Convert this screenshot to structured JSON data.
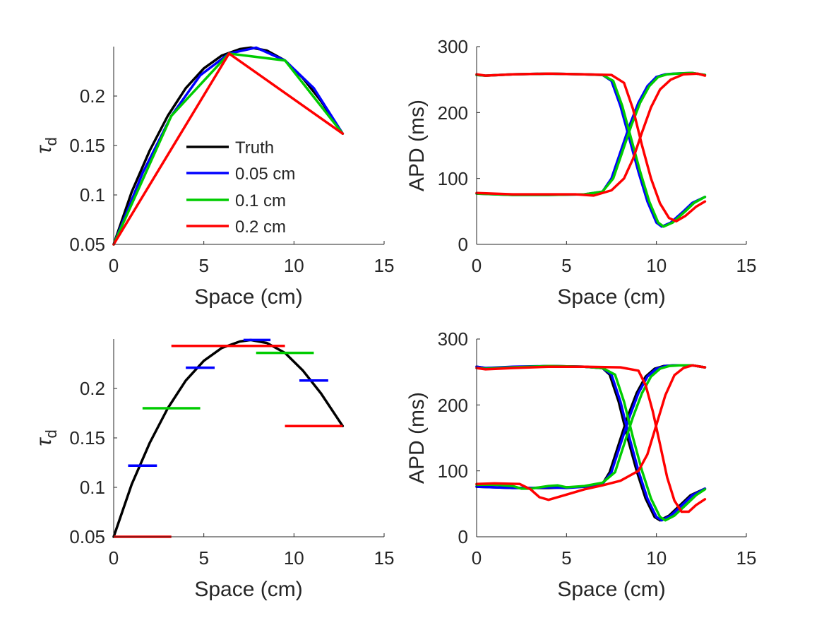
{
  "colors": {
    "truth": "#000000",
    "h005": "#0000ff",
    "h01": "#00cc00",
    "h02": "#ff0000",
    "axis": "#262626"
  },
  "legend": {
    "entries": [
      "Truth",
      "0.05 cm",
      "0.1 cm",
      "0.2 cm"
    ]
  },
  "chart_data": [
    {
      "id": "tau-linear",
      "type": "line",
      "xlabel": "Space (cm)",
      "ylabel_symbol": "τ",
      "ylabel_sub": "d",
      "xlim": [
        0,
        15
      ],
      "ylim": [
        0.05,
        0.25
      ],
      "xticks": [
        0,
        5,
        10,
        15
      ],
      "yticks": [
        0.05,
        0.1,
        0.15,
        0.2
      ],
      "ytick_labels": [
        "0.05",
        "0.1",
        "0.15",
        "0.2"
      ],
      "legend": "inside-lower-center",
      "series": [
        {
          "name": "Truth",
          "color": "truth",
          "x": [
            0,
            1,
            2,
            3,
            4,
            5,
            6,
            7,
            7.6,
            8.5,
            9.5,
            10.5,
            11.5,
            12.7
          ],
          "y": [
            0.05,
            0.103,
            0.145,
            0.18,
            0.208,
            0.228,
            0.241,
            0.2475,
            0.249,
            0.246,
            0.236,
            0.218,
            0.195,
            0.162
          ]
        },
        {
          "name": "0.05 cm",
          "color": "h005",
          "x": [
            0,
            1.6,
            3.2,
            4.8,
            6.4,
            7.9,
            9.5,
            11.1,
            12.7
          ],
          "y": [
            0.05,
            0.122,
            0.18,
            0.221,
            0.243,
            0.249,
            0.236,
            0.208,
            0.162
          ]
        },
        {
          "name": "0.1 cm",
          "color": "h01",
          "x": [
            0,
            3.2,
            6.4,
            9.5,
            12.7
          ],
          "y": [
            0.05,
            0.18,
            0.243,
            0.236,
            0.162
          ]
        },
        {
          "name": "0.2 cm",
          "color": "h02",
          "x": [
            0,
            6.4,
            12.7
          ],
          "y": [
            0.05,
            0.243,
            0.162
          ]
        }
      ]
    },
    {
      "id": "apd-linear",
      "type": "line",
      "xlabel": "Space (cm)",
      "ylabel": "APD (ms)",
      "xlim": [
        0,
        15
      ],
      "ylim": [
        0,
        300
      ],
      "xticks": [
        0,
        5,
        10,
        15
      ],
      "yticks": [
        0,
        100,
        200,
        300
      ],
      "ytick_labels": [
        "0",
        "100",
        "200",
        "300"
      ],
      "series": [
        {
          "name": "0.05 cm upper",
          "color": "h005",
          "x": [
            0,
            0.5,
            2,
            4,
            6,
            7,
            7.5,
            8,
            8.5,
            9,
            9.5,
            10,
            10.3,
            10.8,
            11.5,
            12,
            12.7
          ],
          "y": [
            257,
            256,
            258,
            259,
            258,
            257,
            248,
            210,
            160,
            110,
            65,
            33,
            27,
            33,
            50,
            63,
            72
          ]
        },
        {
          "name": "0.05 cm lower",
          "color": "h005",
          "x": [
            0,
            2,
            4,
            6,
            7,
            7.5,
            8,
            8.5,
            9,
            9.5,
            10,
            10.5,
            11,
            12,
            12.7
          ],
          "y": [
            77,
            75,
            75,
            76,
            80,
            100,
            140,
            180,
            215,
            240,
            254,
            258,
            259,
            260,
            257
          ]
        },
        {
          "name": "0.1 cm upper",
          "color": "h01",
          "x": [
            0,
            0.5,
            2,
            4,
            6,
            7,
            7.6,
            8.1,
            8.6,
            9.1,
            9.6,
            10.1,
            10.4,
            10.9,
            11.6,
            12.1,
            12.7
          ],
          "y": [
            257,
            256,
            258,
            259,
            258,
            257,
            248,
            210,
            160,
            110,
            65,
            33,
            27,
            33,
            50,
            63,
            72
          ]
        },
        {
          "name": "0.1 cm lower",
          "color": "h01",
          "x": [
            0,
            2,
            4,
            6,
            7,
            7.6,
            8.1,
            8.6,
            9.1,
            9.6,
            10.1,
            10.6,
            11.1,
            12,
            12.7
          ],
          "y": [
            77,
            75,
            75,
            76,
            80,
            100,
            140,
            180,
            215,
            240,
            254,
            258,
            259,
            260,
            257
          ]
        },
        {
          "name": "0.2 cm upper",
          "color": "h02",
          "x": [
            0,
            0.5,
            2,
            4,
            6,
            7.5,
            8.2,
            8.7,
            9.2,
            9.7,
            10.2,
            10.7,
            11.1,
            11.6,
            12.2,
            12.7
          ],
          "y": [
            258,
            256,
            258,
            259,
            258,
            257,
            245,
            205,
            150,
            100,
            62,
            40,
            35,
            43,
            57,
            65
          ]
        },
        {
          "name": "0.2 cm lower",
          "color": "h02",
          "x": [
            0,
            2,
            4,
            5.5,
            6.5,
            7.5,
            8.2,
            8.7,
            9.2,
            9.7,
            10.2,
            10.8,
            11.5,
            12.3,
            12.7
          ],
          "y": [
            78,
            76,
            76,
            76,
            74,
            82,
            100,
            130,
            170,
            208,
            235,
            250,
            258,
            259,
            256
          ]
        }
      ]
    },
    {
      "id": "tau-piecewise",
      "type": "line",
      "xlabel": "Space (cm)",
      "ylabel_symbol": "τ",
      "ylabel_sub": "d",
      "xlim": [
        0,
        15
      ],
      "ylim": [
        0.05,
        0.25
      ],
      "xticks": [
        0,
        5,
        10,
        15
      ],
      "yticks": [
        0.05,
        0.1,
        0.15,
        0.2
      ],
      "ytick_labels": [
        "0.05",
        "0.1",
        "0.15",
        "0.2"
      ],
      "series": [
        {
          "name": "Truth",
          "color": "truth",
          "x": [
            0,
            1,
            2,
            3,
            4,
            5,
            6,
            7,
            7.6,
            8.5,
            9.5,
            10.5,
            11.5,
            12.7
          ],
          "y": [
            0.05,
            0.103,
            0.145,
            0.18,
            0.208,
            0.228,
            0.241,
            0.2475,
            0.249,
            0.246,
            0.236,
            0.218,
            0.195,
            0.162
          ]
        }
      ],
      "segments": [
        {
          "color": "h005",
          "x0": 0.8,
          "x1": 2.4,
          "y": 0.122
        },
        {
          "color": "h005",
          "x0": 4.0,
          "x1": 5.6,
          "y": 0.221
        },
        {
          "color": "h005",
          "x0": 7.2,
          "x1": 8.7,
          "y": 0.249
        },
        {
          "color": "h005",
          "x0": 10.3,
          "x1": 11.9,
          "y": 0.208
        },
        {
          "color": "h01",
          "x0": 1.6,
          "x1": 4.8,
          "y": 0.18
        },
        {
          "color": "h01",
          "x0": 7.9,
          "x1": 11.1,
          "y": 0.236
        },
        {
          "color": "h02",
          "x0": 0,
          "x1": 3.2,
          "y": 0.05
        },
        {
          "color": "h02",
          "x0": 3.2,
          "x1": 9.5,
          "y": 0.243
        },
        {
          "color": "h02",
          "x0": 9.5,
          "x1": 12.7,
          "y": 0.162
        }
      ]
    },
    {
      "id": "apd-piecewise",
      "type": "line",
      "xlabel": "Space (cm)",
      "ylabel": "APD (ms)",
      "xlim": [
        0,
        15
      ],
      "ylim": [
        0,
        300
      ],
      "xticks": [
        0,
        5,
        10,
        15
      ],
      "yticks": [
        0,
        100,
        200,
        300
      ],
      "ytick_labels": [
        "0",
        "100",
        "200",
        "300"
      ],
      "series": [
        {
          "name": "Truth upper",
          "color": "truth",
          "x": [
            0,
            0.5,
            2,
            4,
            6,
            7,
            7.4,
            7.9,
            8.4,
            8.9,
            9.4,
            9.9,
            10.2,
            10.7,
            11.4,
            11.9,
            12.7
          ],
          "y": [
            258,
            256,
            257,
            259,
            258,
            256,
            246,
            205,
            150,
            100,
            58,
            30,
            25,
            32,
            50,
            63,
            73
          ]
        },
        {
          "name": "Truth lower",
          "color": "truth",
          "x": [
            0,
            2,
            4,
            6,
            7,
            7.4,
            7.9,
            8.4,
            8.9,
            9.4,
            9.9,
            10.4,
            11,
            12,
            12.7
          ],
          "y": [
            76,
            74,
            74,
            76,
            80,
            98,
            140,
            182,
            218,
            243,
            255,
            259,
            260,
            260,
            257
          ]
        },
        {
          "name": "0.05 cm upper",
          "color": "h005",
          "x": [
            0,
            0.5,
            2,
            4,
            6,
            7,
            7.5,
            8,
            8.5,
            9,
            9.5,
            10,
            10.3,
            10.8,
            11.5,
            12,
            12.7
          ],
          "y": [
            258,
            256,
            258,
            259,
            258,
            256,
            246,
            205,
            150,
            100,
            58,
            30,
            25,
            32,
            50,
            63,
            73
          ]
        },
        {
          "name": "0.05 cm lower",
          "color": "h005",
          "x": [
            0,
            1,
            2,
            3,
            4,
            5,
            6,
            7,
            7.5,
            8,
            8.5,
            9,
            9.5,
            10,
            10.5,
            11,
            12,
            12.7
          ],
          "y": [
            76,
            75,
            74,
            74,
            75,
            74,
            76,
            80,
            98,
            140,
            182,
            218,
            243,
            255,
            259,
            260,
            260,
            257
          ]
        },
        {
          "name": "0.1 cm upper",
          "color": "h01",
          "x": [
            0,
            0.5,
            2,
            4,
            6,
            7,
            7.7,
            8.2,
            8.7,
            9.2,
            9.7,
            10.2,
            10.5,
            11,
            11.7,
            12.2,
            12.7
          ],
          "y": [
            256,
            255,
            257,
            259,
            258,
            256,
            246,
            205,
            150,
            100,
            58,
            30,
            25,
            32,
            50,
            63,
            72
          ]
        },
        {
          "name": "0.1 cm lower",
          "color": "h01",
          "x": [
            0,
            1,
            2,
            2.5,
            3,
            3.5,
            4,
            4.5,
            5,
            6,
            7,
            7.7,
            8.2,
            8.7,
            9.2,
            9.7,
            10.2,
            10.7,
            11.3,
            12,
            12.7
          ],
          "y": [
            79,
            79,
            77,
            73,
            73,
            75,
            77,
            78,
            75,
            77,
            82,
            98,
            140,
            182,
            218,
            243,
            255,
            259,
            260,
            260,
            257
          ]
        },
        {
          "name": "0.2 cm upper",
          "color": "h02",
          "x": [
            0,
            0.5,
            2,
            4,
            6,
            8,
            9,
            9.4,
            9.8,
            10.2,
            10.6,
            11,
            11.4,
            11.8,
            12.2,
            12.7
          ],
          "y": [
            256,
            254,
            256,
            258,
            258,
            257,
            252,
            230,
            190,
            140,
            90,
            55,
            38,
            38,
            48,
            57
          ]
        },
        {
          "name": "0.2 cm lower",
          "color": "h02",
          "x": [
            0,
            1,
            2.4,
            3,
            3.5,
            4,
            5,
            6,
            7,
            8,
            9,
            9.5,
            10,
            10.5,
            11,
            11.5,
            12,
            12.7
          ],
          "y": [
            80,
            81,
            80,
            72,
            60,
            56,
            64,
            72,
            78,
            85,
            100,
            125,
            170,
            215,
            245,
            256,
            260,
            257
          ]
        }
      ]
    }
  ]
}
